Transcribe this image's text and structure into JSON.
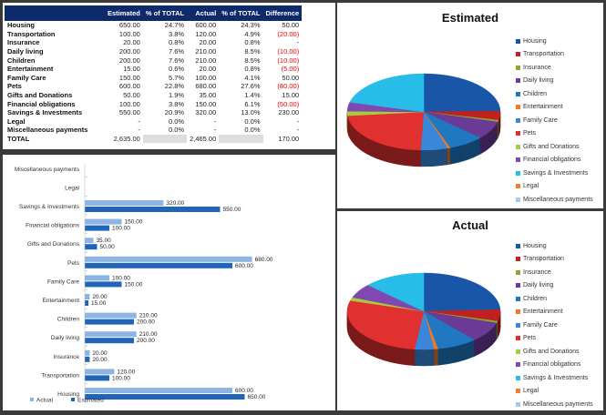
{
  "table": {
    "headers": [
      "",
      "Estimated",
      "% of TOTAL",
      "Actual",
      "% of TOTAL",
      "Difference"
    ],
    "rows": [
      [
        "Housing",
        "650.00",
        "24.7%",
        "600.00",
        "24.3%",
        "50.00"
      ],
      [
        "Transportation",
        "100.00",
        "3.8%",
        "120.00",
        "4.9%",
        "(20.00)"
      ],
      [
        "Insurance",
        "20.00",
        "0.8%",
        "20.00",
        "0.8%",
        "-"
      ],
      [
        "Daily living",
        "200.00",
        "7.6%",
        "210.00",
        "8.5%",
        "(10.00)"
      ],
      [
        "Children",
        "200.00",
        "7.6%",
        "210.00",
        "8.5%",
        "(10.00)"
      ],
      [
        "Entertainment",
        "15.00",
        "0.6%",
        "20.00",
        "0.8%",
        "(5.00)"
      ],
      [
        "Family Care",
        "150.00",
        "5.7%",
        "100.00",
        "4.1%",
        "50.00"
      ],
      [
        "Pets",
        "600.00",
        "22.8%",
        "680.00",
        "27.6%",
        "(80.00)"
      ],
      [
        "Gifts and Donations",
        "50.00",
        "1.9%",
        "35.00",
        "1.4%",
        "15.00"
      ],
      [
        "Financial obligations",
        "100.00",
        "3.8%",
        "150.00",
        "6.1%",
        "(50.00)"
      ],
      [
        "Savings & Investments",
        "550.00",
        "20.9%",
        "320.00",
        "13.0%",
        "230.00"
      ],
      [
        "Legal",
        "-",
        "0.0%",
        "-",
        "0.0%",
        "-"
      ],
      [
        "Miscellaneous payments",
        "-",
        "0.0%",
        "-",
        "0.0%",
        "-"
      ]
    ],
    "total": [
      "TOTAL",
      "2,635.00",
      "",
      "2,465.00",
      "",
      "170.00"
    ]
  },
  "chart_data": [
    {
      "type": "bar",
      "orientation": "horizontal",
      "categories": [
        "Housing",
        "Transportation",
        "Insurance",
        "Daily living",
        "Children",
        "Entertainment",
        "Family Care",
        "Pets",
        "Gifts and Donations",
        "Financial obligations",
        "Savings & Investments",
        "Legal",
        "Miscellaneous payments"
      ],
      "series": [
        {
          "name": "Actual",
          "color": "#8db4e2",
          "values": [
            600,
            120,
            20,
            210,
            210,
            20,
            100,
            680,
            35,
            150,
            320,
            0,
            0
          ],
          "labels": [
            "600.00",
            "120.00",
            "20.00",
            "210.00",
            "210.00",
            "20.00",
            "100.00",
            "680.00",
            "35.00",
            "150.00",
            "320.00",
            "-",
            "-"
          ]
        },
        {
          "name": "Estimated",
          "color": "#1f66b8",
          "values": [
            650,
            100,
            20,
            200,
            200,
            15,
            150,
            600,
            50,
            100,
            550,
            0,
            0
          ],
          "labels": [
            "650.00",
            "100.00",
            "20.00",
            "200.00",
            "200.00",
            "15.00",
            "150.00",
            "600.00",
            "50.00",
            "100.00",
            "550.00",
            "-",
            "-"
          ]
        }
      ],
      "legend": "bottom-left"
    },
    {
      "type": "pie",
      "title": "Estimated",
      "values": [
        650,
        100,
        20,
        200,
        200,
        15,
        150,
        600,
        50,
        100,
        550,
        0,
        0
      ]
    },
    {
      "type": "pie",
      "title": "Actual",
      "values": [
        600,
        120,
        20,
        210,
        210,
        20,
        100,
        680,
        35,
        150,
        320,
        0,
        0
      ]
    }
  ],
  "pie_labels": [
    "Housing",
    "Transportation",
    "Insurance",
    "Daily living",
    "Children",
    "Entertainment",
    "Family Care",
    "Pets",
    "Gifts and Donations",
    "Financial obligations",
    "Savings & Investments",
    "Legal",
    "Miscellaneous payments"
  ],
  "pie_colors": [
    "#1a56a8",
    "#c0201e",
    "#8ca832",
    "#6a3a96",
    "#1f78c0",
    "#f07820",
    "#3a86d8",
    "#e03030",
    "#a8cc3c",
    "#8048b0",
    "#28bce8",
    "#f08030",
    "#a8c8f0"
  ]
}
